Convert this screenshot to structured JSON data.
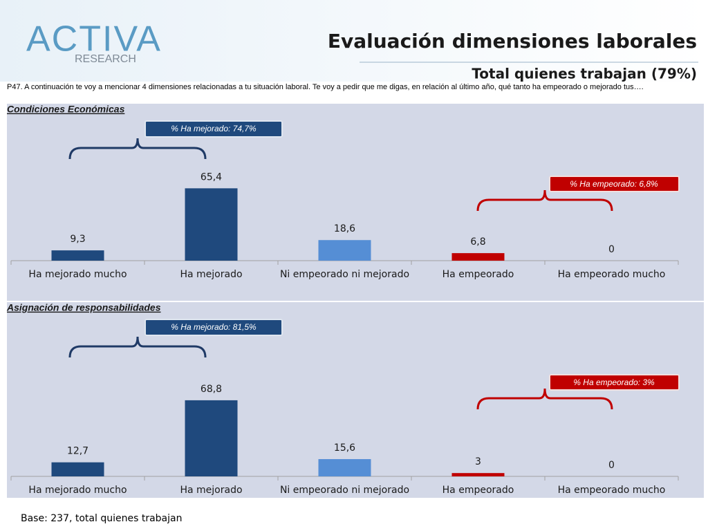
{
  "header": {
    "logo": "ACTIVA",
    "logo_sub": "RESEARCH",
    "title": "Evaluación dimensiones laborales",
    "subtitle": "Total quienes trabajan (79%)",
    "question": "P47. A continuación te voy a mencionar 4 dimensiones relacionadas a tu situación laboral. Te voy a pedir que me digas, en relación al último año, qué tanto ha empeorado o mejorado tus….",
    "base": "Base: 237, total quienes trabajan"
  },
  "chart_data": [
    {
      "type": "bar",
      "title": "Condiciones Económicas",
      "categories": [
        "Ha mejorado mucho",
        "Ha mejorado",
        "Ni empeorado ni mejorado",
        "Ha empeorado",
        "Ha empeorado mucho"
      ],
      "values": [
        9.3,
        65.4,
        18.6,
        6.8,
        0
      ],
      "value_labels": [
        "9,3",
        "65,4",
        "18,6",
        "6,8",
        "0"
      ],
      "colors": [
        "#1f497d",
        "#1f497d",
        "#558ed5",
        "#c00000",
        "#c00000"
      ],
      "ylim": [
        0,
        80
      ],
      "annotations": [
        "% Ha mejorado:  74,7%",
        "% Ha empeorado:  6,8%"
      ]
    },
    {
      "type": "bar",
      "title": "Asignación de responsabilidades",
      "categories": [
        "Ha mejorado mucho",
        "Ha mejorado",
        "Ni empeorado ni mejorado",
        "Ha empeorado",
        "Ha empeorado mucho"
      ],
      "values": [
        12.7,
        68.8,
        15.6,
        3,
        0
      ],
      "value_labels": [
        "12,7",
        "68,8",
        "15,6",
        "3",
        "0"
      ],
      "colors": [
        "#1f497d",
        "#1f497d",
        "#558ed5",
        "#c00000",
        "#c00000"
      ],
      "ylim": [
        0,
        80
      ],
      "annotations": [
        "% Ha mejorado:  81,5%",
        "% Ha empeorado:  3%"
      ]
    }
  ]
}
